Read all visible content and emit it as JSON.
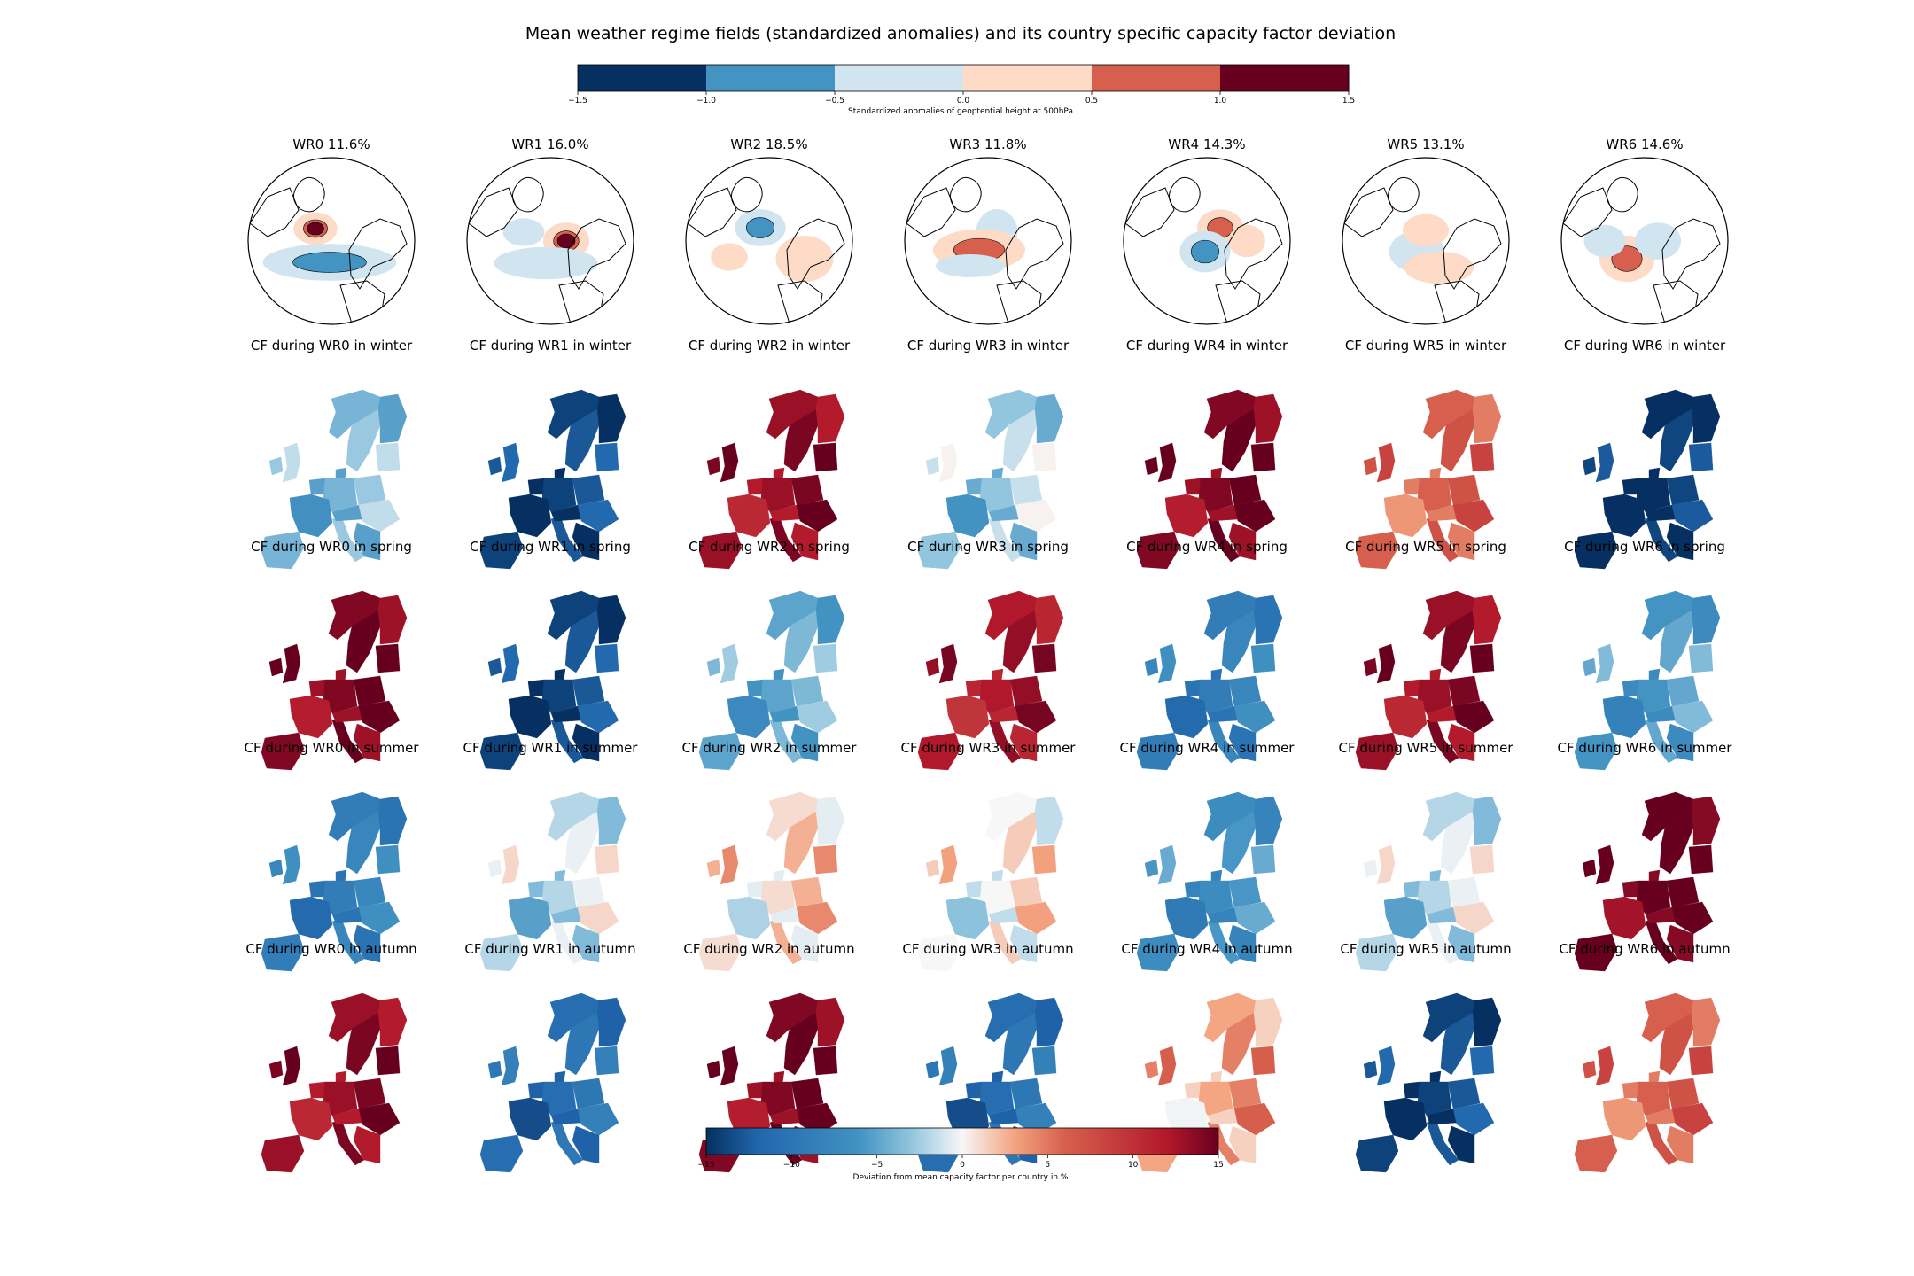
{
  "title": "Mean weather regime fields (standardized anomalies) and its country specific capacity factor deviation",
  "top_colorbar": {
    "label": "Standardized anomalies of geoptential height at 500hPa",
    "ticks": [
      "−1.5",
      "−1.0",
      "−0.5",
      "0.0",
      "0.5",
      "1.0",
      "1.5"
    ],
    "bins": [
      "#053061",
      "#4393c3",
      "#d1e5f0",
      "#fddbc7",
      "#d6604d",
      "#67001f"
    ]
  },
  "bottom_colorbar": {
    "label": "Deviation from mean capacity factor per country in %",
    "ticks": [
      "−15",
      "−10",
      "−5",
      "0",
      "5",
      "10",
      "15"
    ],
    "range": [
      -15,
      15
    ]
  },
  "regimes": [
    {
      "name": "WR0",
      "freq": "11.6%",
      "title": "WR0 11.6%"
    },
    {
      "name": "WR1",
      "freq": "16.0%",
      "title": "WR1 16.0%"
    },
    {
      "name": "WR2",
      "freq": "18.5%",
      "title": "WR2 18.5%"
    },
    {
      "name": "WR3",
      "freq": "11.8%",
      "title": "WR3 11.8%"
    },
    {
      "name": "WR4",
      "freq": "14.3%",
      "title": "WR4 14.3%"
    },
    {
      "name": "WR5",
      "freq": "13.1%",
      "title": "WR5 13.1%"
    },
    {
      "name": "WR6",
      "freq": "14.6%",
      "title": "WR6 14.6%"
    }
  ],
  "seasons": [
    "winter",
    "spring",
    "summer",
    "autumn"
  ],
  "chart_data": {
    "type": "heatmap",
    "title": "Mean weather regime fields (standardized anomalies) and its country specific capacity factor deviation",
    "regime_frequency_percent": {
      "WR0": 11.6,
      "WR1": 16.0,
      "WR2": 18.5,
      "WR3": 11.8,
      "WR4": 14.3,
      "WR5": 13.1,
      "WR6": 14.6
    },
    "cf_deviation_colorbar": {
      "label": "Deviation from mean capacity factor per country in %",
      "range": [
        -15,
        15
      ]
    },
    "geopotential_colorbar": {
      "label": "Standardized anomalies of geoptential height at 500hPa",
      "levels": [
        -1.5,
        -1.0,
        -0.5,
        0.0,
        0.5,
        1.0,
        1.5
      ]
    },
    "panels": [
      {
        "season": "winter",
        "title_pattern": "CF during {WR} in winter",
        "approx_mean_deviation_percent": {
          "WR0": -4,
          "WR1": -14,
          "WR2": 13,
          "WR3": -3,
          "WR4": 14,
          "WR5": 6,
          "WR6": -15
        }
      },
      {
        "season": "spring",
        "title_pattern": "CF during {WR} in spring",
        "approx_mean_deviation_percent": {
          "WR0": 14,
          "WR1": -14,
          "WR2": -5,
          "WR3": 12,
          "WR4": -9,
          "WR5": 13,
          "WR6": -6
        }
      },
      {
        "season": "summer",
        "title_pattern": "CF during {WR} in summer",
        "approx_mean_deviation_percent": {
          "WR0": -9,
          "WR1": -2,
          "WR2": 1,
          "WR3": 0,
          "WR4": -7,
          "WR5": -2,
          "WR6": 15
        }
      },
      {
        "season": "autumn",
        "title_pattern": "CF during {WR} in autumn",
        "approx_mean_deviation_percent": {
          "WR0": 13,
          "WR1": -11,
          "WR2": 14,
          "WR3": -11,
          "WR4": 3,
          "WR5": -14,
          "WR6": 6
        }
      }
    ]
  }
}
